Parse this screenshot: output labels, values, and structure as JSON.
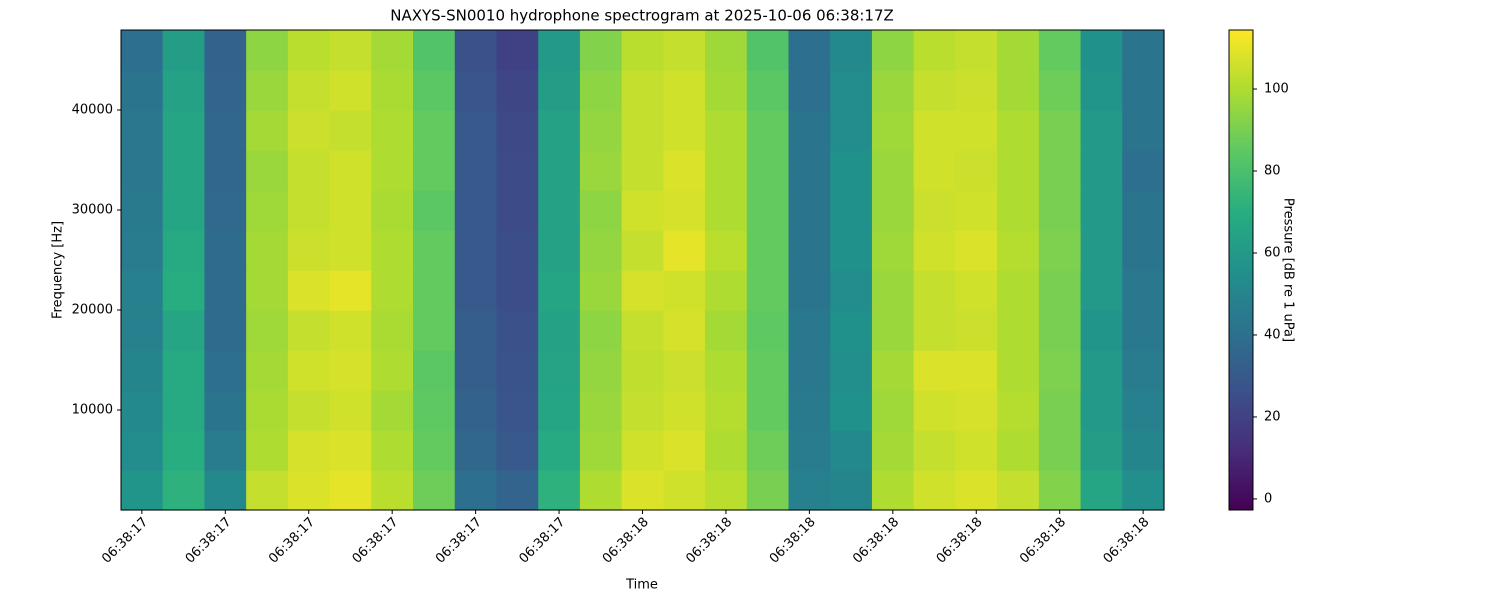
{
  "chart_data": {
    "type": "heatmap",
    "title": "NAXYS-SN0010 hydrophone spectrogram at 2025-10-06 06:38:17Z",
    "x_label": "Time",
    "y_label": "Frequency [Hz]",
    "colorbar_label": "Pressure [dB re 1 uPa]",
    "colormap": "viridis",
    "categories": [
      "06:38:17",
      null,
      "06:38:17",
      null,
      "06:38:17",
      null,
      "06:38:17",
      null,
      "06:38:17",
      null,
      "06:38:17",
      null,
      "06:38:18",
      null,
      "06:38:18",
      null,
      "06:38:18",
      null,
      "06:38:18",
      null,
      "06:38:18",
      null,
      "06:38:18",
      null,
      "06:38:18"
    ],
    "y": [
      2000,
      6000,
      10000,
      14000,
      18000,
      22000,
      26000,
      30000,
      34000,
      38000,
      42000,
      46000
    ],
    "ylim": [
      0,
      48000
    ],
    "yticks": [
      10000,
      20000,
      30000,
      40000
    ],
    "clim": [
      -2.7,
      114.4
    ],
    "cticks": [
      0,
      20,
      40,
      60,
      80,
      100
    ],
    "z": [
      [
        58,
        72,
        52,
        104,
        108,
        110,
        102,
        88,
        40,
        35,
        72,
        100,
        108,
        106,
        102,
        90,
        48,
        50,
        100,
        106,
        108,
        104,
        92,
        66,
        55
      ],
      [
        54,
        70,
        46,
        100,
        107,
        108,
        100,
        86,
        36,
        30,
        68,
        97,
        106,
        108,
        100,
        88,
        46,
        52,
        98,
        104,
        106,
        100,
        90,
        62,
        50
      ],
      [
        52,
        68,
        42,
        99,
        104,
        106,
        98,
        85,
        34,
        28,
        66,
        96,
        104,
        106,
        101,
        86,
        45,
        56,
        97,
        106,
        107,
        101,
        90,
        60,
        48
      ],
      [
        50,
        68,
        40,
        98,
        106,
        107,
        100,
        84,
        32,
        27,
        65,
        95,
        103,
        105,
        100,
        86,
        44,
        55,
        98,
        108,
        108,
        100,
        91,
        60,
        46
      ],
      [
        48,
        66,
        38,
        97,
        104,
        106,
        99,
        86,
        32,
        26,
        64,
        94,
        104,
        107,
        98,
        85,
        44,
        56,
        96,
        104,
        105,
        100,
        90,
        58,
        44
      ],
      [
        48,
        70,
        38,
        98,
        108,
        110,
        100,
        86,
        30,
        25,
        66,
        96,
        107,
        106,
        100,
        86,
        42,
        54,
        96,
        104,
        106,
        100,
        90,
        60,
        44
      ],
      [
        46,
        68,
        38,
        98,
        105,
        106,
        100,
        86,
        30,
        25,
        64,
        95,
        104,
        110,
        102,
        86,
        42,
        56,
        97,
        106,
        108,
        101,
        91,
        60,
        42
      ],
      [
        45,
        66,
        37,
        97,
        104,
        106,
        99,
        84,
        30,
        24,
        64,
        94,
        106,
        107,
        100,
        86,
        42,
        56,
        96,
        105,
        106,
        100,
        90,
        60,
        42
      ],
      [
        44,
        66,
        36,
        96,
        104,
        106,
        100,
        86,
        30,
        24,
        64,
        96,
        104,
        108,
        100,
        86,
        42,
        56,
        96,
        106,
        105,
        100,
        90,
        60,
        40
      ],
      [
        44,
        66,
        36,
        98,
        105,
        104,
        100,
        86,
        30,
        23,
        64,
        95,
        104,
        106,
        100,
        86,
        42,
        54,
        97,
        106,
        106,
        100,
        90,
        60,
        42
      ],
      [
        42,
        64,
        35,
        96,
        104,
        106,
        99,
        84,
        28,
        22,
        62,
        94,
        104,
        106,
        98,
        84,
        40,
        54,
        96,
        104,
        105,
        98,
        88,
        58,
        42
      ],
      [
        40,
        62,
        34,
        94,
        102,
        104,
        98,
        82,
        26,
        20,
        60,
        92,
        102,
        104,
        97,
        82,
        40,
        52,
        94,
        102,
        104,
        98,
        86,
        56,
        42
      ]
    ]
  }
}
